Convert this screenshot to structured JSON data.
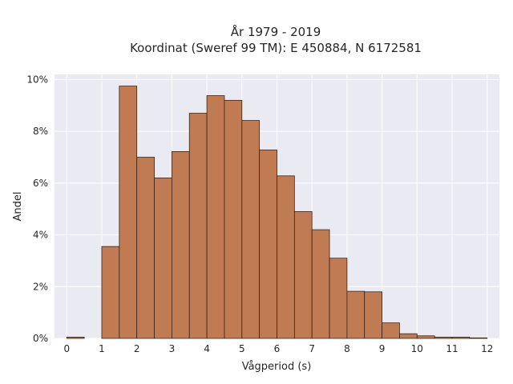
{
  "chart_data": {
    "type": "bar",
    "title_line1": "År 1979 - 2019",
    "title_line2": "Koordinat (Sweref 99 TM): E 450884, N 6172581",
    "xlabel": "Vågperiod (s)",
    "ylabel": "Andel",
    "xlim": [
      -0.35,
      12.35
    ],
    "ylim": [
      0,
      10.2
    ],
    "x_ticks": [
      0,
      1,
      2,
      3,
      4,
      5,
      6,
      7,
      8,
      9,
      10,
      11,
      12
    ],
    "y_ticks": [
      0,
      2,
      4,
      6,
      8,
      10
    ],
    "y_tick_labels": [
      "0%",
      "2%",
      "4%",
      "6%",
      "8%",
      "10%"
    ],
    "bin_width": 0.5,
    "bin_starts": [
      0.0,
      1.0,
      1.5,
      2.0,
      2.5,
      3.0,
      3.5,
      4.0,
      4.5,
      5.0,
      5.5,
      6.0,
      6.5,
      7.0,
      7.5,
      8.0,
      8.5,
      9.0,
      9.5,
      10.0,
      10.5,
      11.0,
      11.5
    ],
    "values": [
      0.05,
      3.55,
      9.75,
      7.0,
      6.2,
      7.22,
      8.7,
      9.38,
      9.2,
      8.42,
      7.28,
      6.28,
      4.9,
      4.2,
      3.1,
      1.82,
      1.8,
      0.6,
      0.18,
      0.1,
      0.05,
      0.05,
      0.02
    ],
    "grid": true,
    "bar_color": "#c07b53",
    "plot_background": "#eaeaf2"
  }
}
